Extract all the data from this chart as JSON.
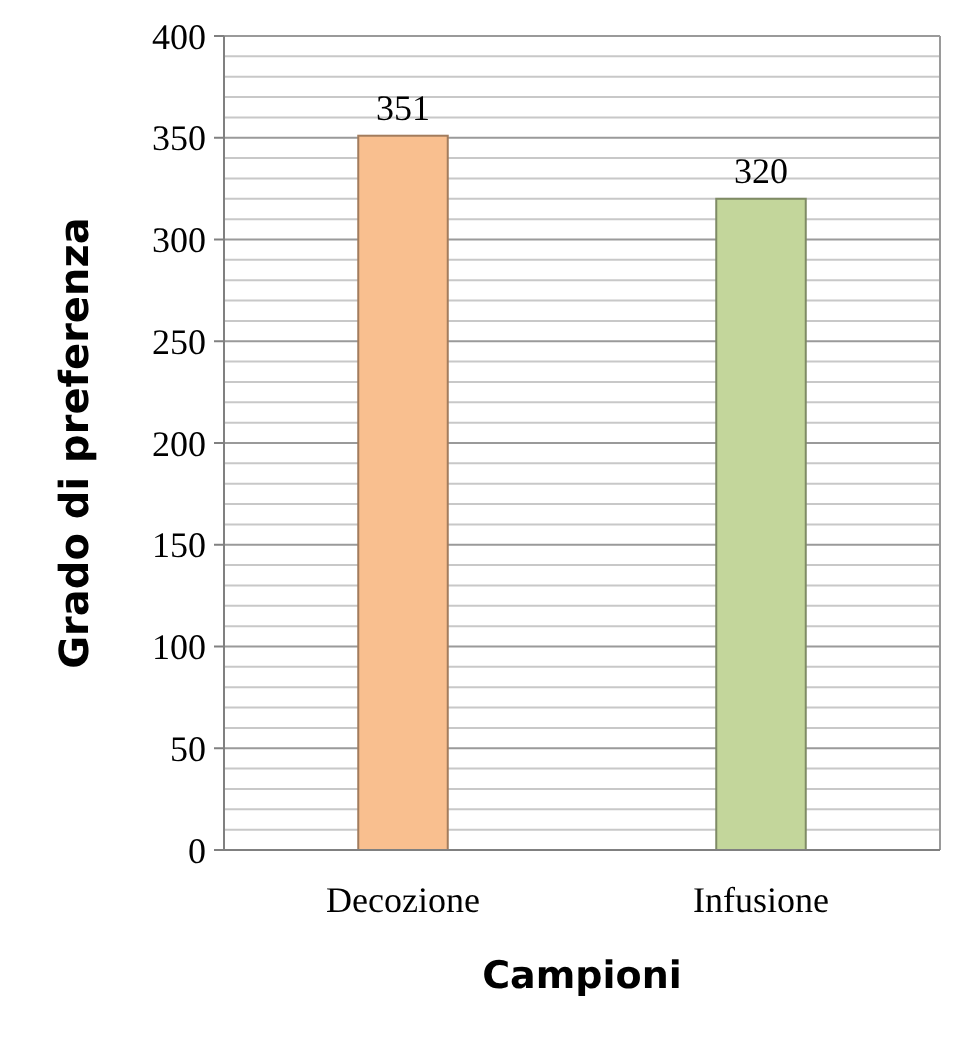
{
  "chart_data": {
    "type": "bar",
    "xlabel": "Campioni",
    "ylabel": "Grado di preferenza",
    "categories": [
      "Decozione",
      "Infusione"
    ],
    "values": [
      351,
      320
    ],
    "colors": [
      "#f9bf8f",
      "#c3d69b"
    ],
    "ylim": [
      0,
      400
    ],
    "yticks": [
      0,
      {
        "value": 10,
        "label": null
      },
      {
        "value": 20,
        "label": null
      },
      {
        "value": 30,
        "label": null
      },
      {
        "value": 40,
        "label": null
      },
      50,
      {
        "value": 60,
        "label": null
      },
      {
        "value": 70,
        "label": null
      },
      {
        "value": 80,
        "label": null
      },
      {
        "value": 90,
        "label": null
      },
      100,
      {
        "value": 110,
        "label": null
      },
      {
        "value": 120,
        "label": null
      },
      {
        "value": 130,
        "label": null
      },
      {
        "value": 140,
        "label": null
      },
      150,
      {
        "value": 160,
        "label": null
      },
      {
        "value": 170,
        "label": null
      },
      {
        "value": 180,
        "label": null
      },
      {
        "value": 190,
        "label": null
      },
      200,
      {
        "value": 210,
        "label": null
      },
      {
        "value": 220,
        "label": null
      },
      {
        "value": 230,
        "label": null
      },
      {
        "value": 240,
        "label": null
      },
      250,
      {
        "value": 260,
        "label": null
      },
      {
        "value": 270,
        "label": null
      },
      {
        "value": 280,
        "label": null
      },
      {
        "value": 290,
        "label": null
      },
      300,
      {
        "value": 310,
        "label": null
      },
      {
        "value": 320,
        "label": null
      },
      {
        "value": 330,
        "label": null
      },
      {
        "value": 340,
        "label": null
      },
      350,
      {
        "value": 360,
        "label": null
      },
      {
        "value": 370,
        "label": null
      },
      {
        "value": 380,
        "label": null
      },
      {
        "value": 390,
        "label": null
      },
      400
    ],
    "grid": "y",
    "data_labels": true
  }
}
